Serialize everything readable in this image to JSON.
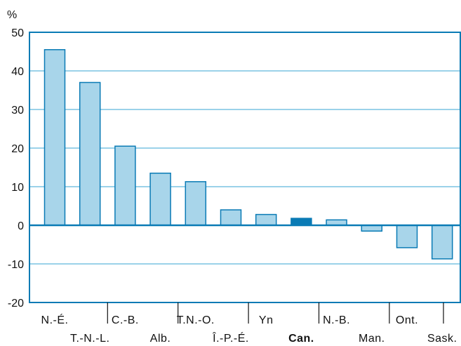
{
  "chart_data": {
    "type": "bar",
    "unit_label": "%",
    "ylim": [
      -20,
      50
    ],
    "yticks": [
      50,
      40,
      30,
      20,
      10,
      0,
      -10,
      -20
    ],
    "grid": true,
    "highlight_category": "Can.",
    "colors": {
      "bar": "#a8d5ea",
      "bar_highlight": "#0a7bb5",
      "bar_stroke": "#0a7bb5",
      "grid": "#5fb7dc",
      "frame": "#0a7bb5",
      "zero_line": "#0a7bb5"
    },
    "categories": [
      "N.-É.",
      "T.-N.-L.",
      "C.-B.",
      "Alb.",
      "T.N.-O.",
      "Î.-P.-É.",
      "Yn",
      "Can.",
      "N.-B.",
      "Man.",
      "Ont.",
      "Sask."
    ],
    "values": [
      45.5,
      37,
      20.5,
      13.5,
      11.3,
      4,
      2.8,
      1.8,
      1.4,
      -1.5,
      -5.8,
      -8.7
    ]
  }
}
